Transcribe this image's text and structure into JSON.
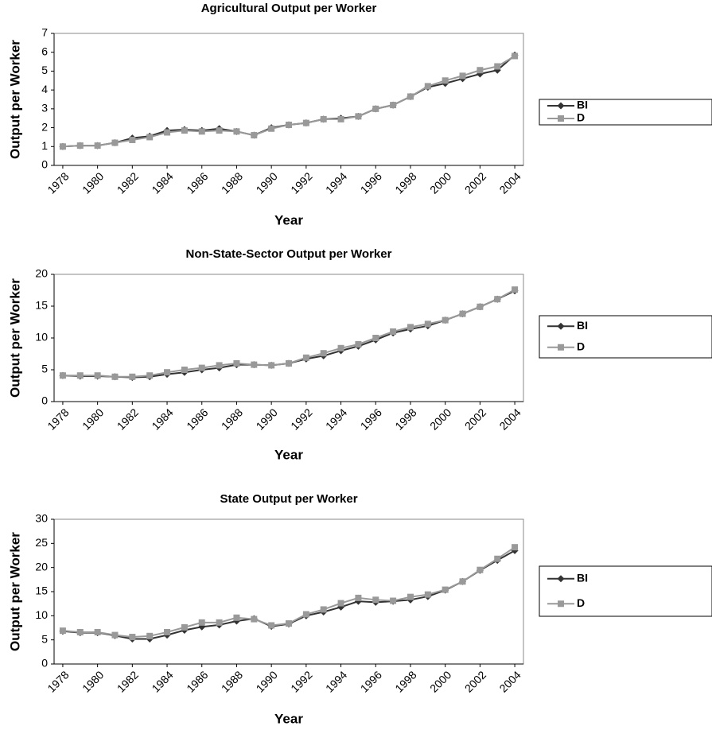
{
  "chart_data": [
    {
      "type": "line",
      "title": "Agricultural Output per Worker",
      "x_label": "Year",
      "y_label": "Output per Worker",
      "x": [
        1978,
        1979,
        1980,
        1981,
        1982,
        1983,
        1984,
        1985,
        1986,
        1987,
        1988,
        1989,
        1990,
        1991,
        1992,
        1993,
        1994,
        1995,
        1996,
        1997,
        1998,
        1999,
        2000,
        2001,
        2002,
        2003,
        2004
      ],
      "xlim": [
        1977.5,
        2004.5
      ],
      "xticks": [
        1978,
        1980,
        1982,
        1984,
        1986,
        1988,
        1990,
        1992,
        1994,
        1996,
        1998,
        2000,
        2002,
        2004
      ],
      "ylim": [
        0,
        7
      ],
      "yticks": [
        0,
        1,
        2,
        3,
        4,
        5,
        6,
        7
      ],
      "series": [
        {
          "name": "BI",
          "color": "#333333",
          "marker": "diamond",
          "values": [
            1.0,
            1.05,
            1.05,
            1.2,
            1.45,
            1.55,
            1.85,
            1.9,
            1.85,
            1.95,
            1.8,
            1.6,
            2.0,
            2.15,
            2.25,
            2.45,
            2.5,
            2.6,
            3.0,
            3.2,
            3.65,
            4.15,
            4.35,
            4.6,
            4.85,
            5.05,
            5.85
          ]
        },
        {
          "name": "D",
          "color": "#999999",
          "marker": "square",
          "values": [
            1.0,
            1.05,
            1.05,
            1.2,
            1.35,
            1.5,
            1.75,
            1.85,
            1.8,
            1.85,
            1.8,
            1.6,
            1.95,
            2.15,
            2.25,
            2.45,
            2.45,
            2.6,
            3.0,
            3.2,
            3.65,
            4.2,
            4.5,
            4.75,
            5.05,
            5.25,
            5.8
          ]
        }
      ]
    },
    {
      "type": "line",
      "title": "Non-State-Sector Output per Worker",
      "x_label": "Year",
      "y_label": "Output per Worker",
      "x": [
        1978,
        1979,
        1980,
        1981,
        1982,
        1983,
        1984,
        1985,
        1986,
        1987,
        1988,
        1989,
        1990,
        1991,
        1992,
        1993,
        1994,
        1995,
        1996,
        1997,
        1998,
        1999,
        2000,
        2001,
        2002,
        2003,
        2004
      ],
      "xlim": [
        1977.5,
        2004.5
      ],
      "xticks": [
        1978,
        1980,
        1982,
        1984,
        1986,
        1988,
        1990,
        1992,
        1994,
        1996,
        1998,
        2000,
        2002,
        2004
      ],
      "ylim": [
        0,
        20
      ],
      "yticks": [
        0,
        5,
        10,
        15,
        20
      ],
      "series": [
        {
          "name": "BI",
          "color": "#333333",
          "marker": "diamond",
          "values": [
            4.1,
            4.0,
            4.0,
            3.9,
            3.8,
            3.9,
            4.3,
            4.6,
            5.0,
            5.3,
            5.8,
            5.8,
            5.7,
            6.0,
            6.7,
            7.2,
            8.0,
            8.7,
            9.7,
            10.8,
            11.4,
            11.9,
            12.8,
            13.8,
            14.9,
            16.1,
            17.4
          ]
        },
        {
          "name": "D",
          "color": "#999999",
          "marker": "square",
          "values": [
            4.1,
            4.1,
            4.1,
            3.9,
            3.9,
            4.1,
            4.6,
            5.0,
            5.3,
            5.7,
            6.0,
            5.8,
            5.7,
            6.0,
            6.9,
            7.6,
            8.4,
            9.0,
            10.0,
            11.0,
            11.7,
            12.2,
            12.8,
            13.8,
            14.9,
            16.1,
            17.6
          ]
        }
      ]
    },
    {
      "type": "line",
      "title": "State Output per Worker",
      "x_label": "Year",
      "y_label": "Output per Worker",
      "x": [
        1978,
        1979,
        1980,
        1981,
        1982,
        1983,
        1984,
        1985,
        1986,
        1987,
        1988,
        1989,
        1990,
        1991,
        1992,
        1993,
        1994,
        1995,
        1996,
        1997,
        1998,
        1999,
        2000,
        2001,
        2002,
        2003,
        2004
      ],
      "xlim": [
        1977.5,
        2004.5
      ],
      "xticks": [
        1978,
        1980,
        1982,
        1984,
        1986,
        1988,
        1990,
        1992,
        1994,
        1996,
        1998,
        2000,
        2002,
        2004
      ],
      "ylim": [
        0,
        30
      ],
      "yticks": [
        0,
        5,
        10,
        15,
        20,
        25,
        30
      ],
      "series": [
        {
          "name": "BI",
          "color": "#333333",
          "marker": "diamond",
          "values": [
            6.8,
            6.5,
            6.5,
            5.9,
            5.2,
            5.2,
            6.0,
            7.0,
            7.7,
            8.1,
            8.9,
            9.4,
            7.8,
            8.3,
            10.0,
            10.8,
            11.8,
            13.0,
            12.8,
            13.0,
            13.3,
            14.0,
            15.3,
            17.1,
            19.4,
            21.5,
            23.5
          ]
        },
        {
          "name": "D",
          "color": "#999999",
          "marker": "square",
          "values": [
            6.9,
            6.6,
            6.6,
            6.0,
            5.6,
            5.8,
            6.6,
            7.6,
            8.6,
            8.6,
            9.6,
            9.3,
            8.0,
            8.4,
            10.3,
            11.3,
            12.6,
            13.7,
            13.3,
            13.1,
            13.9,
            14.4,
            15.4,
            17.1,
            19.5,
            21.8,
            24.2
          ]
        }
      ]
    }
  ]
}
